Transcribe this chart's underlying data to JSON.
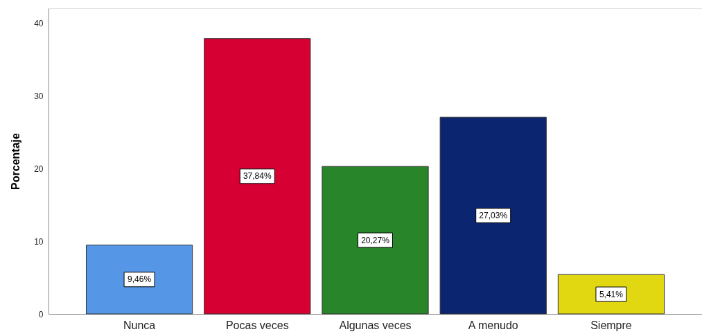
{
  "chart_data": {
    "type": "bar",
    "ylabel": "Porcentaje",
    "categories": [
      "Nunca",
      "Pocas veces",
      "Algunas veces",
      "A menudo",
      "Siempre"
    ],
    "values": [
      9.46,
      37.84,
      20.27,
      27.03,
      5.41
    ],
    "colors": [
      "#5596e6",
      "#d70032",
      "#29852a",
      "#0b2570",
      "#e2d812"
    ],
    "value_labels": [
      "9,46%",
      "37,84%",
      "20,27%",
      "27,03%",
      "5,41%"
    ],
    "ylim": [
      0,
      42
    ],
    "yticks": [
      0,
      10,
      20,
      30,
      40
    ],
    "grid": false,
    "legend": false
  }
}
